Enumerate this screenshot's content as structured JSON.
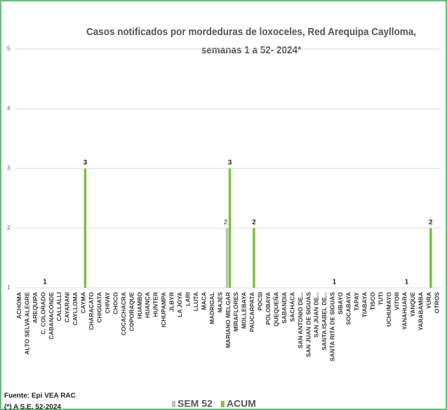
{
  "chart_data": {
    "type": "bar",
    "title": [
      "Casos notificados por mordeduras de loxoceles, Red Arequipa Caylloma,",
      "semanas 1 a 52- 2024*"
    ],
    "categories": [
      "ACHOMA",
      "ALTO SELVA ALEGRE",
      "AREQUIPA",
      "C. COLORADO",
      "CABANACONDE",
      "CALLALLI",
      "CAYARANI",
      "CAYLLOMA",
      "CAYMA",
      "CHARACATO",
      "CHIGUATA",
      "CHIVAY",
      "CHOCO",
      "COCACHACRA",
      "COPORAQUE",
      "HUAMBO",
      "HUANCA",
      "HUNTER",
      "ICHUPAMPA",
      "JLBYR",
      "LA JOYA",
      "LARI",
      "LLUTA",
      "MACA",
      "MADRIGAL",
      "MAJES",
      "MARIANO MELGAR",
      "MIRAFLORES",
      "MOLLEBAYA",
      "PAUCARPATA",
      "POCSI",
      "POLOBAYA",
      "QUEQUEÑA",
      "SABANDIA",
      "SACHACA",
      "SAN ANTONIO DE...",
      "SAN JUAN DE SIGUAS",
      "SAN JUAN DE...",
      "SANTA ISABEL DE...",
      "SANTA RITA DE SIGUAS",
      "SIBAYO",
      "SOCABAYA",
      "TAPAY",
      "TIABAYA",
      "TISCO",
      "TUTI",
      "UCHUMAYO",
      "VITOR",
      "YANAHUARA",
      "YANQUE",
      "YARABAMBA",
      "YURA",
      "OTROS"
    ],
    "series": [
      {
        "name": "SEM 52",
        "color": "#bfbfbf",
        "values": [
          null,
          null,
          null,
          null,
          null,
          null,
          null,
          null,
          null,
          null,
          null,
          null,
          null,
          null,
          null,
          null,
          null,
          null,
          null,
          null,
          null,
          null,
          null,
          null,
          null,
          null,
          2,
          null,
          null,
          null,
          null,
          null,
          null,
          null,
          null,
          null,
          null,
          null,
          null,
          null,
          null,
          null,
          null,
          null,
          null,
          null,
          null,
          null,
          null,
          null,
          null,
          null,
          null
        ]
      },
      {
        "name": "ACUM",
        "color": "#7ac143",
        "values": [
          null,
          null,
          null,
          1,
          null,
          null,
          null,
          null,
          3,
          null,
          null,
          null,
          null,
          null,
          null,
          null,
          null,
          null,
          null,
          null,
          null,
          null,
          null,
          null,
          null,
          null,
          3,
          null,
          null,
          2,
          null,
          null,
          null,
          null,
          null,
          null,
          null,
          null,
          null,
          1,
          null,
          null,
          null,
          null,
          null,
          null,
          null,
          null,
          1,
          null,
          null,
          2,
          null
        ]
      }
    ],
    "ylim": [
      1,
      5
    ],
    "yticks": [
      1,
      2,
      3,
      4,
      5
    ],
    "grid": true,
    "notes": [
      "Fuente: Epi VEA RAC",
      "(*) A S.E. 52-2024"
    ]
  }
}
